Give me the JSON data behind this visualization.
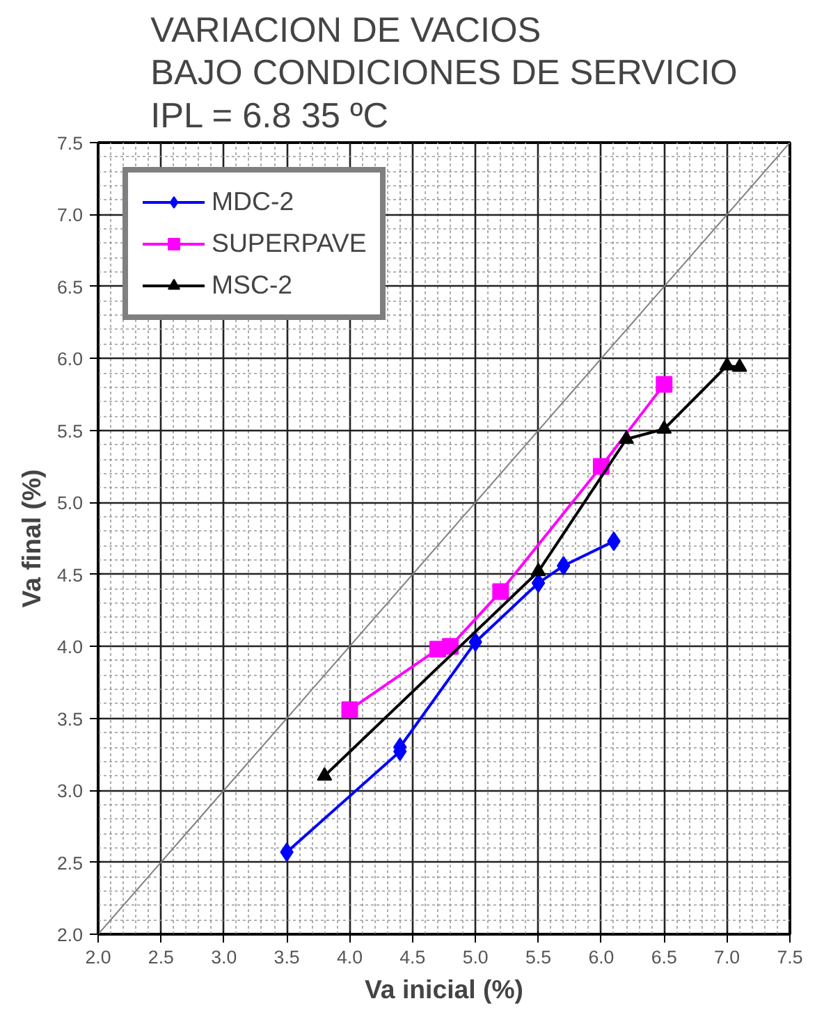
{
  "chart_data": {
    "type": "line",
    "title": "VARIACION DE VACIOS\nBAJO CONDICIONES DE SERVICIO\nIPL = 6.8        35 ºC",
    "xlabel": "Va inicial (%)",
    "ylabel": "Va final (%)",
    "series": [
      {
        "name": "MDC-2",
        "color": "#0000ff",
        "marker": "diamond",
        "x": [
          3.5,
          4.4,
          4.4,
          5.0,
          5.5,
          5.7,
          6.1
        ],
        "values": [
          2.57,
          3.27,
          3.3,
          4.03,
          4.44,
          4.56,
          4.73
        ]
      },
      {
        "name": "SUPERPAVE",
        "color": "#ff00ff",
        "marker": "square",
        "x": [
          4.0,
          4.7,
          4.8,
          5.2,
          6.0,
          6.5
        ],
        "values": [
          3.56,
          3.98,
          4.0,
          4.38,
          5.25,
          5.82
        ]
      },
      {
        "name": "MSC-2",
        "color": "#000000",
        "marker": "triangle",
        "x": [
          3.8,
          5.5,
          6.2,
          6.5,
          7.0,
          7.1
        ],
        "values": [
          3.1,
          4.52,
          5.44,
          5.51,
          5.95,
          5.94
        ]
      },
      {
        "color": "#808080",
        "marker": "none",
        "x": [
          2.0,
          7.5
        ],
        "values": [
          2.0,
          7.5
        ]
      }
    ],
    "xlim": [
      2.0,
      7.5
    ],
    "ylim": [
      2.0,
      7.5
    ],
    "xticks": [
      {
        "value": 2,
        "label": "2.0"
      },
      2.5,
      {
        "value": 3,
        "label": "3.0"
      },
      3.5,
      {
        "value": 4,
        "label": "4.0"
      },
      4.5,
      {
        "value": 5,
        "label": "5.0"
      },
      5.5,
      {
        "value": 6,
        "label": "6.0"
      },
      6.5,
      {
        "value": 7,
        "label": "7.0"
      },
      7.5
    ],
    "yticks": [
      {
        "value": 2,
        "label": "2.0"
      },
      2.5,
      {
        "value": 3,
        "label": "3.0"
      },
      3.5,
      {
        "value": 4,
        "label": "4.0"
      },
      4.5,
      {
        "value": 5,
        "label": "5.0"
      },
      5.5,
      {
        "value": 6,
        "label": "6.0"
      },
      6.5,
      {
        "value": 7,
        "label": "7.0"
      },
      7.5
    ],
    "grid": true,
    "legend": "top left"
  }
}
